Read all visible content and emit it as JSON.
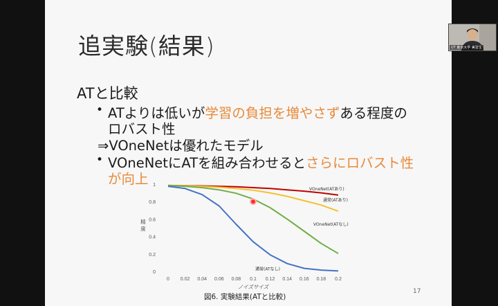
{
  "slide": {
    "title": "追実験(結果)",
    "heading": "ATと比較",
    "bullet1_plain": "ATよりは低いが",
    "bullet1_highlight": "学習の負担を増やさず",
    "bullet1_tail": "ある程度の",
    "bullet1_line2": "ロバスト性",
    "arrow_line": "⇒VOneNetは優れたモデル",
    "bullet2_plain": "VOneNetにATを組み合わせると",
    "bullet2_highlight": "さらにロバスト性",
    "bullet2_line2": "が向上",
    "page_number": "17",
    "caption": "図6. 実験結果(ATと比較)",
    "highlight_color": "#e8893a"
  },
  "webcam": {
    "name_label": "UT 東京大学 実習生"
  },
  "chart_data": {
    "type": "line",
    "xlabel": "ノイズサイズ",
    "ylabel": "精度",
    "xlim": [
      0,
      0.2
    ],
    "ylim": [
      0,
      1
    ],
    "x_ticks": [
      "0",
      "0.02",
      "0.04",
      "0.06",
      "0.08",
      "0.1",
      "0.12",
      "0.14",
      "0.16",
      "0.18",
      "0.2"
    ],
    "y_ticks": [
      "0",
      "0.2",
      "0.4",
      "0.6",
      "0.8",
      "1"
    ],
    "x": [
      0,
      0.02,
      0.04,
      0.06,
      0.08,
      0.1,
      0.12,
      0.14,
      0.16,
      0.18,
      0.2
    ],
    "series": [
      {
        "name": "VOneNet(ATあり)",
        "color": "#c00000",
        "values": [
          0.985,
          0.983,
          0.98,
          0.975,
          0.97,
          0.96,
          0.95,
          0.935,
          0.92,
          0.9,
          0.875
        ]
      },
      {
        "name": "通常(ATあり)",
        "color": "#f2c230",
        "values": [
          0.985,
          0.982,
          0.975,
          0.965,
          0.95,
          0.93,
          0.9,
          0.86,
          0.81,
          0.76,
          0.69
        ]
      },
      {
        "name": "VOneNet(ATなし)",
        "color": "#70ad47",
        "values": [
          0.985,
          0.975,
          0.96,
          0.935,
          0.895,
          0.83,
          0.73,
          0.6,
          0.46,
          0.32,
          0.205
        ]
      },
      {
        "name": "通常(ATなし)",
        "color": "#4472c4",
        "values": [
          0.975,
          0.95,
          0.88,
          0.75,
          0.54,
          0.34,
          0.19,
          0.09,
          0.035,
          0.015,
          0.005
        ]
      }
    ],
    "grid": false,
    "legend": "inline-labels"
  }
}
